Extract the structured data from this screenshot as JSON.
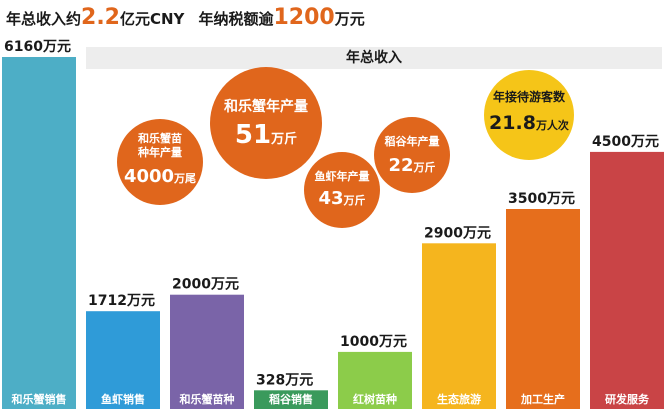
{
  "headline": {
    "part1": "年总收入约",
    "num1": "2.2",
    "part2": "亿元CNY",
    "part3": "年纳税额逾",
    "num2": "1200",
    "part4": "万元"
  },
  "chart_data": {
    "type": "bar",
    "title": "年总收入",
    "unit": "万元",
    "categories": [
      "和乐蟹销售",
      "鱼虾销售",
      "和乐蟹苗种",
      "稻谷销售",
      "红树苗种",
      "生态旅游",
      "加工生产",
      "研发服务"
    ],
    "values": [
      6160,
      1712,
      2000,
      328,
      1000,
      2900,
      3500,
      4500
    ],
    "value_labels": [
      "6160万元",
      "1712万元",
      "2000万元",
      "328万元",
      "1000万元",
      "2900万元",
      "3500万元",
      "4500万元"
    ],
    "colors": [
      "#4daec6",
      "#2f9bd8",
      "#7a64a8",
      "#3a9a5c",
      "#8ccc4a",
      "#f5b51e",
      "#e66e1c",
      "#c94446"
    ],
    "ylim": [
      0,
      6160
    ],
    "grid": false,
    "legend": "none"
  },
  "callouts": [
    {
      "id": "crab-seed",
      "line1": "和乐蟹苗",
      "line2": "种年产量",
      "value": "4000",
      "unit": "万尾",
      "color": "#e0661c"
    },
    {
      "id": "crab-output",
      "line1": "和乐蟹年产量",
      "value": "51",
      "unit": "万斤",
      "color": "#e0661c"
    },
    {
      "id": "shrimp-output",
      "line1": "鱼虾年产量",
      "value": "43",
      "unit": "万斤",
      "color": "#e0661c"
    },
    {
      "id": "rice-output",
      "line1": "稻谷年产量",
      "value": "22",
      "unit": "万斤",
      "color": "#e0661c"
    },
    {
      "id": "tourists",
      "line1": "年接待游客数",
      "value": "21.8",
      "unit": "万人次",
      "color": "#f5c518"
    }
  ]
}
